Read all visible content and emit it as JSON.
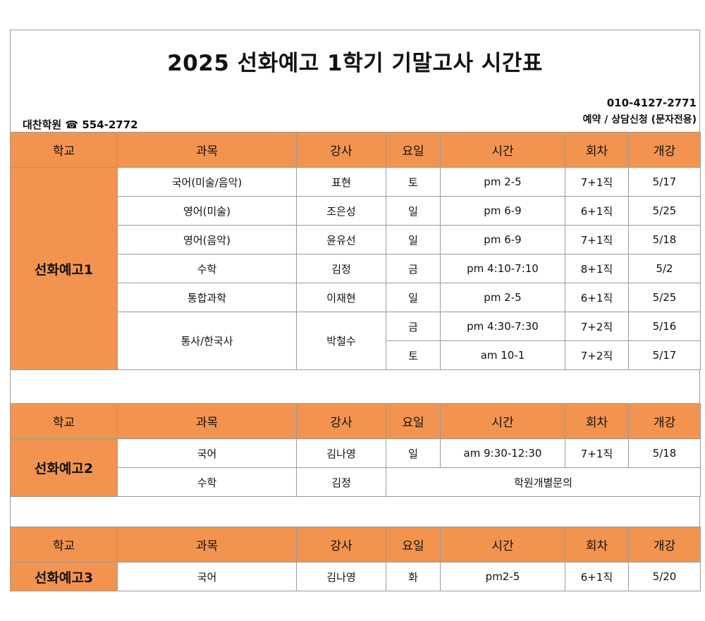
{
  "title": "2025 선화예고 1학기 기말고사 시간표",
  "academy": "대찬학원 ☎ 554-2772",
  "contact_phone": "010-4127-2771",
  "contact_note": "예약 / 상담신청 (문자전용)",
  "headers": [
    "학교",
    "과목",
    "강사",
    "요일",
    "시간",
    "회차",
    "개강"
  ],
  "tables": [
    {
      "school": "선화예고1",
      "rows": [
        {
          "subject": "국어(미술/음악)",
          "teacher": "표현",
          "day": "토",
          "time": "pm 2-5",
          "sessions": "7+1직",
          "start": "5/17"
        },
        {
          "subject": "영어(미술)",
          "teacher": "조은성",
          "day": "일",
          "time": "pm 6-9",
          "sessions": "6+1직",
          "start": "5/25"
        },
        {
          "subject": "영어(음악)",
          "teacher": "윤유선",
          "day": "일",
          "time": "pm 6-9",
          "sessions": "7+1직",
          "start": "5/18"
        },
        {
          "subject": "수학",
          "teacher": "김정",
          "day": "금",
          "time": "pm 4:10-7:10",
          "sessions": "8+1직",
          "start": "5/2"
        },
        {
          "subject": "통합과학",
          "teacher": "이재현",
          "day": "일",
          "time": "pm 2-5",
          "sessions": "6+1직",
          "start": "5/25"
        },
        {
          "subject": "통사/한국사",
          "teacher": "박철수",
          "day": "금",
          "time": "pm 4:30-7:30",
          "sessions": "7+2직",
          "start": "5/16"
        },
        {
          "day": "토",
          "time": "am 10-1",
          "sessions": "7+2직",
          "start": "5/17"
        }
      ]
    },
    {
      "school": "선화예고2",
      "rows": [
        {
          "subject": "국어",
          "teacher": "김나영",
          "day": "일",
          "time": "am 9:30-12:30",
          "sessions": "7+1직",
          "start": "5/18"
        },
        {
          "subject": "수학",
          "teacher": "김정",
          "note": "학원개별문의"
        }
      ]
    },
    {
      "school": "선화예고3",
      "rows": [
        {
          "subject": "국어",
          "teacher": "김나영",
          "day": "화",
          "time": "pm2-5",
          "sessions": "6+1직",
          "start": "5/20"
        }
      ]
    }
  ]
}
